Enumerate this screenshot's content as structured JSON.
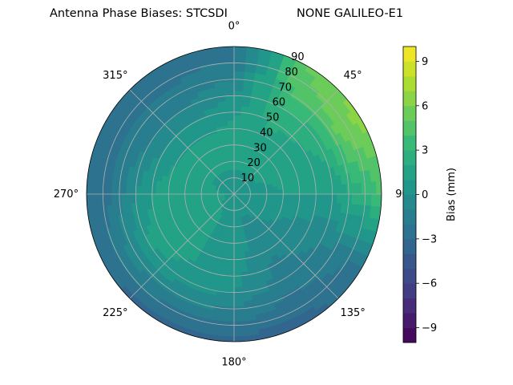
{
  "chart_data": {
    "type": "heatmap",
    "subtype": "polar-filled-contour",
    "title_left": "Antenna Phase Biases: STCSDI",
    "title_right": "NONE GALILEO-E1",
    "theta_direction": "clockwise",
    "theta_zero_location": "top",
    "angular_ticks": [
      {
        "deg": 0,
        "label": "0°"
      },
      {
        "deg": 45,
        "label": "45°"
      },
      {
        "deg": 90,
        "label": "90"
      },
      {
        "deg": 135,
        "label": "135°"
      },
      {
        "deg": 180,
        "label": "180°"
      },
      {
        "deg": 225,
        "label": "225°"
      },
      {
        "deg": 270,
        "label": "270°"
      },
      {
        "deg": 315,
        "label": "315°"
      }
    ],
    "radial_range": [
      0,
      90
    ],
    "radial_ticks": [
      10,
      20,
      30,
      40,
      50,
      60,
      70,
      80,
      90
    ],
    "radial_tick_labels": [
      "10",
      "20",
      "30",
      "40",
      "50",
      "60",
      "70",
      "80",
      "90"
    ],
    "grid": true,
    "colormap": "viridis",
    "colorbar": {
      "label": "Bias (mm)",
      "range": [
        -10,
        10
      ],
      "levels": 20,
      "ticks": [
        -9,
        -6,
        -3,
        0,
        3,
        6,
        9
      ],
      "tick_labels": [
        "−9",
        "−6",
        "−3",
        "0",
        "3",
        "6",
        "9"
      ]
    },
    "values_mm": {
      "description_grid": "bias in mm on azimuth (rows, deg) x zenith angle (cols, deg) grid",
      "azimuth": [
        0,
        30,
        60,
        90,
        120,
        150,
        180,
        210,
        240,
        270,
        300,
        330,
        360
      ],
      "zenith": [
        0,
        15,
        30,
        45,
        60,
        75,
        90
      ],
      "bias": [
        [
          0.5,
          1.0,
          1.5,
          1.0,
          0.0,
          -1.5,
          -2.5
        ],
        [
          0.5,
          1.0,
          1.5,
          2.0,
          3.0,
          4.5,
          5.0
        ],
        [
          0.5,
          1.0,
          1.5,
          1.5,
          2.5,
          5.5,
          6.5
        ],
        [
          0.5,
          0.5,
          1.0,
          1.0,
          1.0,
          2.5,
          4.0
        ],
        [
          0.5,
          0.5,
          0.0,
          -0.5,
          -1.0,
          -1.5,
          -2.5
        ],
        [
          0.5,
          0.0,
          -0.5,
          -1.0,
          -1.5,
          -2.5,
          -3.5
        ],
        [
          0.5,
          0.0,
          0.5,
          0.5,
          0.0,
          -1.5,
          -3.5
        ],
        [
          0.5,
          1.0,
          1.0,
          1.0,
          0.5,
          -1.5,
          -3.5
        ],
        [
          0.5,
          1.5,
          2.0,
          2.0,
          1.0,
          -1.0,
          -3.0
        ],
        [
          0.5,
          1.5,
          2.0,
          1.5,
          0.0,
          -2.0,
          -3.0
        ],
        [
          0.5,
          1.0,
          1.5,
          0.5,
          -1.0,
          -2.0,
          -2.5
        ],
        [
          0.5,
          1.0,
          1.5,
          0.5,
          -1.0,
          -2.0,
          -2.5
        ],
        [
          0.5,
          1.0,
          1.5,
          1.0,
          0.0,
          -1.5,
          -2.5
        ]
      ]
    }
  }
}
